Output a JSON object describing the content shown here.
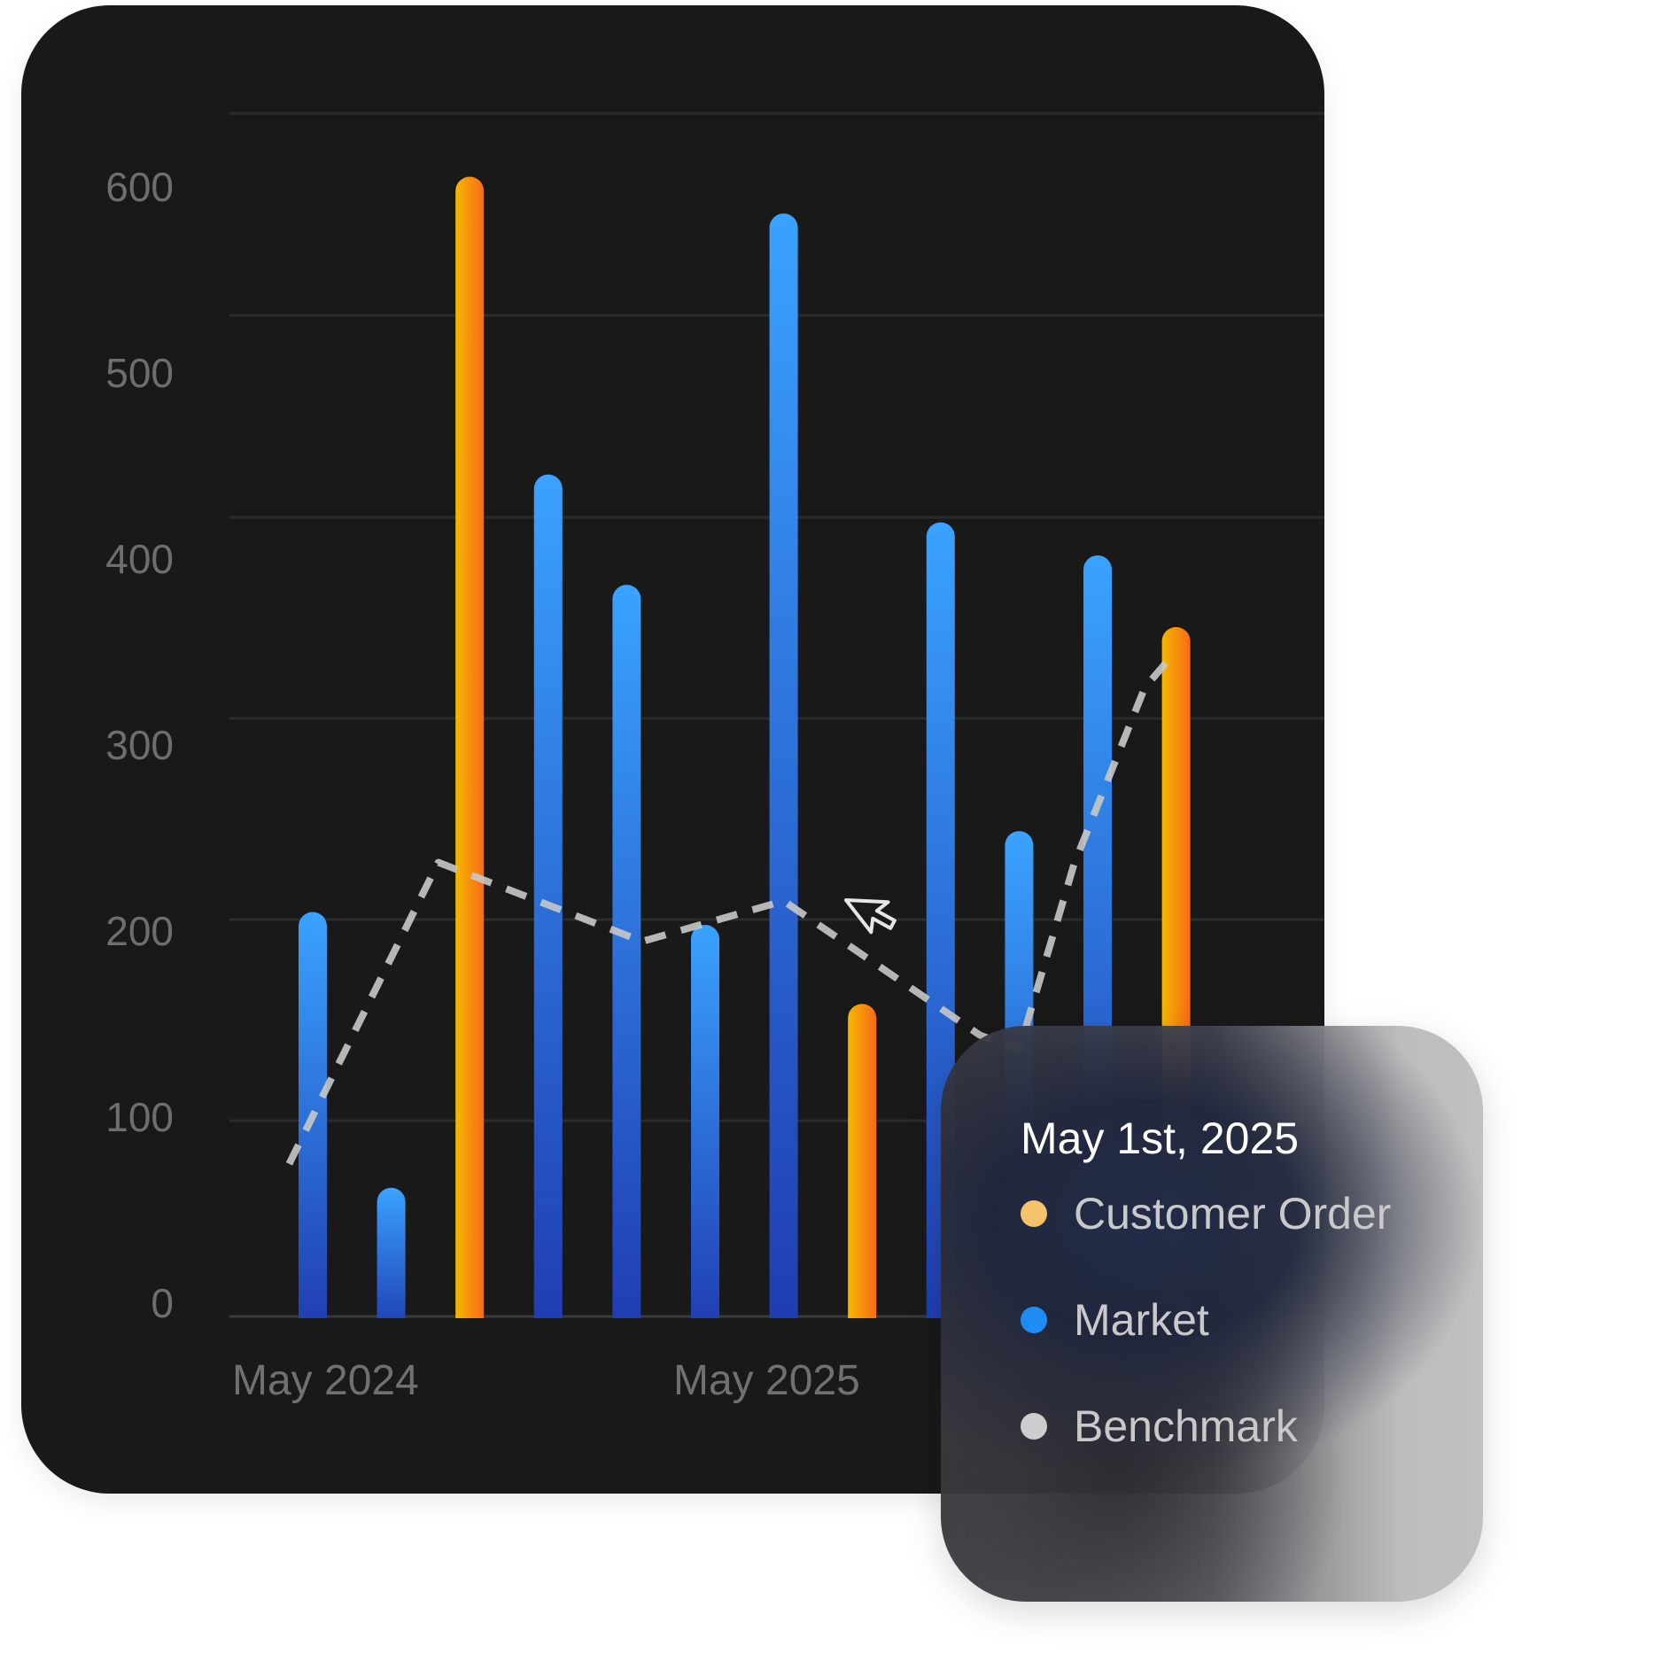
{
  "colors": {
    "card_background": "#191919",
    "gridline": "#2c2c2c",
    "axis_line": "#3a3a3a",
    "customer_order_top": "#f5b800",
    "customer_order_bottom": "#f86a17",
    "market_top": "#3aa2ff",
    "market_bottom": "#1f3cb0",
    "benchmark_line": "#c8c8c8"
  },
  "chart_data": {
    "type": "bar",
    "y_ticks": [
      "0",
      "100",
      "200",
      "300",
      "400",
      "500",
      "600"
    ],
    "ylim": [
      0,
      650
    ],
    "x_labels": [
      "May 2024",
      "May 2025"
    ],
    "grid": true,
    "series": [
      {
        "name": "Customer Order",
        "color": "#f5a623",
        "points": [
          {
            "slot": 2,
            "value": 620
          },
          {
            "slot": 7,
            "value": 170
          },
          {
            "slot": 11,
            "value": 375
          }
        ]
      },
      {
        "name": "Market",
        "color": "#1e90ff",
        "points": [
          {
            "slot": 0,
            "value": 220
          },
          {
            "slot": 1,
            "value": 70
          },
          {
            "slot": 3,
            "value": 458
          },
          {
            "slot": 4,
            "value": 398
          },
          {
            "slot": 5,
            "value": 213
          },
          {
            "slot": 6,
            "value": 600
          },
          {
            "slot": 8,
            "value": 432
          },
          {
            "slot": 9,
            "value": 264
          },
          {
            "slot": 10,
            "value": 414
          }
        ]
      },
      {
        "name": "Benchmark",
        "type": "line",
        "style": "dashed",
        "color": "#c8c8c8",
        "points": [
          {
            "x": -0.3,
            "y": 83
          },
          {
            "x": 1.6,
            "y": 247
          },
          {
            "x": 4.2,
            "y": 204
          },
          {
            "x": 6.0,
            "y": 226
          },
          {
            "x": 8.5,
            "y": 153
          },
          {
            "x": 9.0,
            "y": 145
          },
          {
            "x": 9.7,
            "y": 246
          },
          {
            "x": 10.6,
            "y": 342
          },
          {
            "x": 11.0,
            "y": 362
          }
        ]
      }
    ]
  },
  "tooltip": {
    "date": "May 1st, 2025",
    "items": [
      {
        "label": "Customer Order",
        "color": "#f6c26a"
      },
      {
        "label": "Market",
        "color": "#1e8cf5"
      },
      {
        "label": "Benchmark",
        "color": "#cdcdcd"
      }
    ]
  },
  "cursor": {
    "icon": "pointer-arrow-icon"
  }
}
